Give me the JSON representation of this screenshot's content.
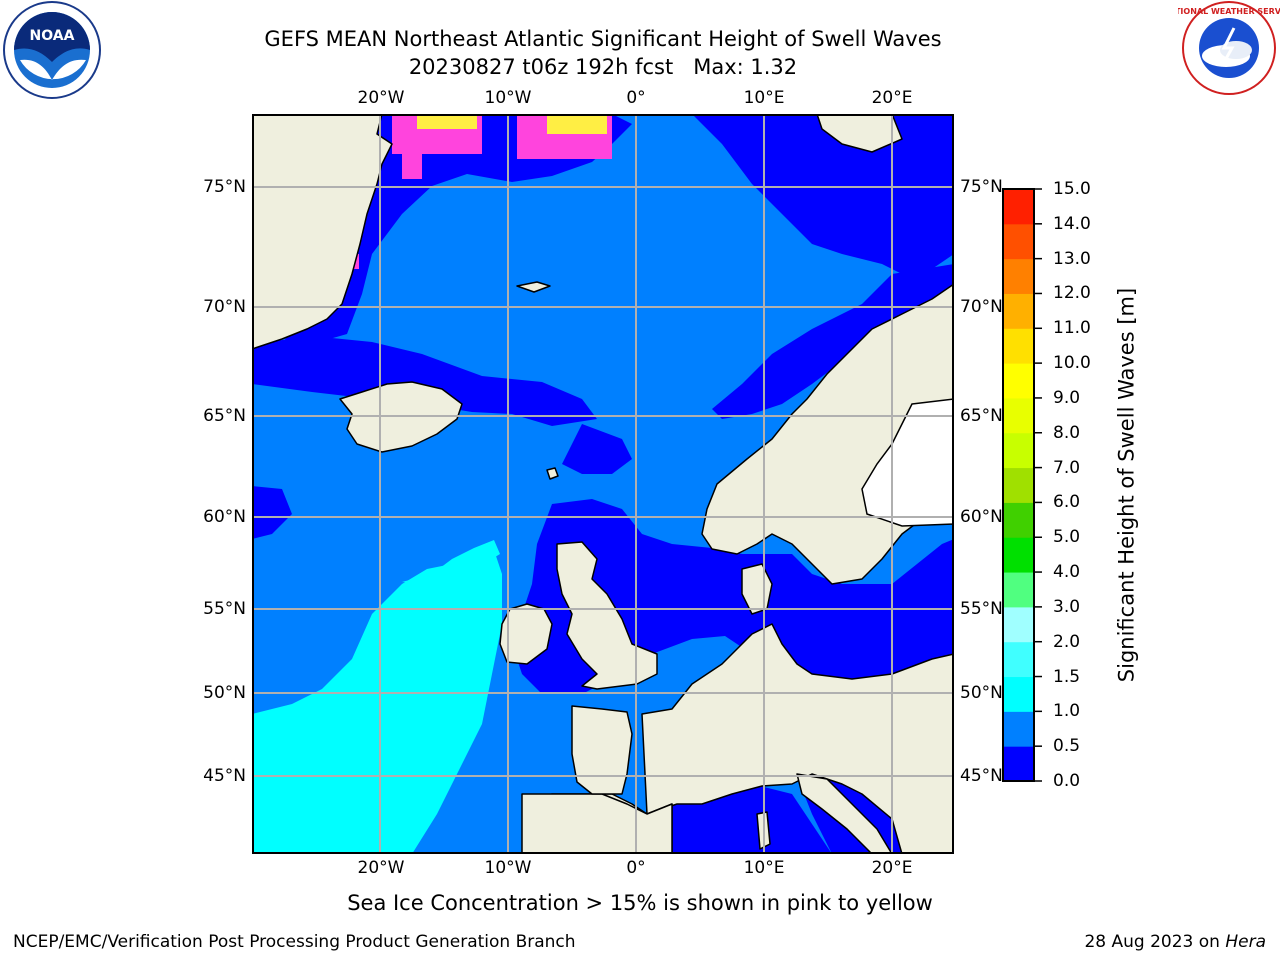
{
  "header": {
    "title_line1": "GEFS MEAN Northeast Atlantic Significant Height of Swell Waves",
    "title_line2": "20230827 t06z 192h fcst   Max: 1.32"
  },
  "logos": {
    "left": {
      "name": "noaa-logo",
      "text": "NOAA"
    },
    "right": {
      "name": "nws-logo",
      "text": "NATIONAL WEATHER SERVICE"
    }
  },
  "map": {
    "lon_ticks": [
      "20°W",
      "10°W",
      "0°",
      "10°E",
      "20°E"
    ],
    "lat_ticks": [
      "75°N",
      "70°N",
      "65°N",
      "60°N",
      "55°N",
      "50°N",
      "45°N"
    ],
    "colors": {
      "land": "#efefde",
      "dark_blue": "#0000ff",
      "mid_blue": "#0080ff",
      "cyan": "#00ffff",
      "ice_pink": "#ff44dd",
      "ice_yellow": "#ffee44",
      "grid": "#b0b0b0"
    }
  },
  "colorbar": {
    "label": "Significant Height of Swell Waves [m]",
    "ticks": [
      "15.0",
      "14.0",
      "13.0",
      "12.0",
      "11.0",
      "10.0",
      "9.0",
      "8.0",
      "7.0",
      "6.0",
      "5.0",
      "4.0",
      "3.0",
      "2.0",
      "1.5",
      "1.0",
      "0.5",
      "0.0"
    ],
    "colors": [
      "#0000ff",
      "#0080ff",
      "#00ffff",
      "#40ffff",
      "#a0ffff",
      "#50ff80",
      "#00e000",
      "#40d000",
      "#a0e000",
      "#c8ff00",
      "#e8ff00",
      "#ffff00",
      "#ffe000",
      "#ffb000",
      "#ff8000",
      "#ff5000",
      "#ff2000",
      "#ff0000"
    ]
  },
  "caption": "Sea Ice Concentration > 15% is shown in pink to yellow",
  "footer": {
    "left": "NCEP/EMC/Verification Post Processing Product Generation Branch",
    "right_date": "28 Aug 2023 on",
    "right_host": "Hera"
  }
}
